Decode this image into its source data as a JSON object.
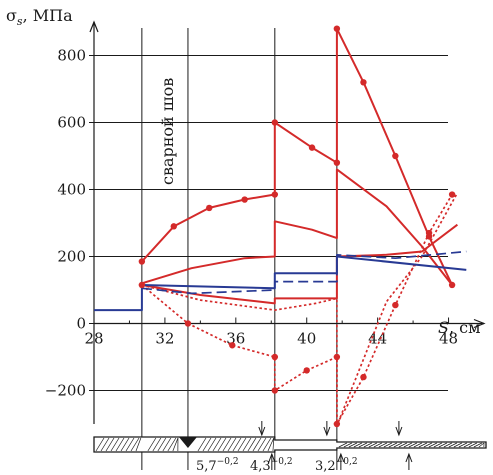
{
  "chart_data": {
    "type": "line",
    "title": "",
    "ylabel": "σ_s, МПа",
    "ylabel_main": "σ",
    "ylabel_sub": "s",
    "ylabel_unit": ", МПа",
    "xlabel": "S, см",
    "xlabel_var": "S",
    "xlabel_unit": ", см",
    "xlim": [
      28,
      50
    ],
    "ylim": [
      -300,
      900
    ],
    "xticks": [
      "28",
      "32",
      "36",
      "40",
      "44",
      "48"
    ],
    "xtick_values": [
      28,
      32,
      36,
      40,
      44,
      48
    ],
    "yticks": [
      "−200",
      "0",
      "200",
      "400",
      "600",
      "800"
    ],
    "ytick_values": [
      -200,
      0,
      200,
      400,
      600,
      800
    ],
    "grid": "horizontal",
    "vertical_lines": [
      30.7,
      33.3,
      38.2,
      41.7
    ],
    "weld_label": "сварной шов",
    "weld_x": 33.3,
    "colors": {
      "red": "#d42a2a",
      "blue": "#283a94",
      "black": "#1a1a1a"
    },
    "series": [
      {
        "color": "#d42a2a",
        "style": "solid",
        "marker": "dot",
        "x": [
          30.7,
          32.5,
          34.5,
          36.5,
          38.2,
          38.2,
          40.3,
          41.7,
          41.7,
          43.2,
          45.0,
          46.9,
          48.2
        ],
        "y": [
          185,
          290,
          345,
          370,
          385,
          600,
          525,
          480,
          880,
          720,
          500,
          260,
          115
        ]
      },
      {
        "color": "#d42a2a",
        "style": "solid",
        "marker": "none",
        "x": [
          30.7,
          33.5,
          36.5,
          38.2,
          38.2,
          40.3,
          41.7,
          41.7,
          44.5,
          46.5,
          48.2
        ],
        "y": [
          120,
          165,
          195,
          200,
          305,
          280,
          255,
          460,
          350,
          230,
          115
        ]
      },
      {
        "color": "#d42a2a",
        "style": "solid",
        "marker": "none",
        "x": [
          30.7,
          34.0,
          38.2,
          38.2,
          41.7,
          41.7,
          44.5,
          46.5,
          48.5
        ],
        "y": [
          115,
          85,
          60,
          75,
          75,
          200,
          205,
          215,
          295
        ]
      },
      {
        "color": "#d42a2a",
        "style": "dotted",
        "marker": "none",
        "x": [
          30.7,
          34.0,
          38.2,
          38.2,
          40.5,
          41.7,
          41.7,
          44.5,
          46.5,
          48.5
        ],
        "y": [
          115,
          70,
          40,
          40,
          60,
          75,
          -305,
          65,
          200,
          390
        ]
      },
      {
        "color": "#d42a2a",
        "style": "dotted",
        "marker": "dot",
        "x": [
          30.7,
          33.3,
          35.8,
          38.2,
          38.2,
          40.0,
          41.7,
          41.7,
          43.2,
          45.0,
          46.9,
          48.2
        ],
        "y": [
          115,
          0,
          -65,
          -100,
          -200,
          -140,
          -100,
          -300,
          -160,
          55,
          270,
          385
        ]
      },
      {
        "color": "#283a94",
        "style": "solid",
        "marker": "none",
        "x": [
          28,
          30.7,
          30.7,
          38.2,
          38.2,
          41.7,
          41.7,
          49
        ],
        "y": [
          40,
          40,
          115,
          105,
          150,
          150,
          200,
          160
        ]
      },
      {
        "color": "#283a94",
        "style": "dashed",
        "marker": "none",
        "x": [
          30.7,
          33.5,
          38.2,
          38.2,
          41.7,
          41.7,
          45.0,
          49.0
        ],
        "y": [
          105,
          90,
          100,
          125,
          125,
          205,
          195,
          215
        ]
      }
    ],
    "gauge_labels": [
      {
        "value": "5,7",
        "sup": "−0,2"
      },
      {
        "value": "4,3",
        "sup": "−0,2"
      },
      {
        "value": "3,2",
        "sup": "−0,2"
      }
    ]
  }
}
